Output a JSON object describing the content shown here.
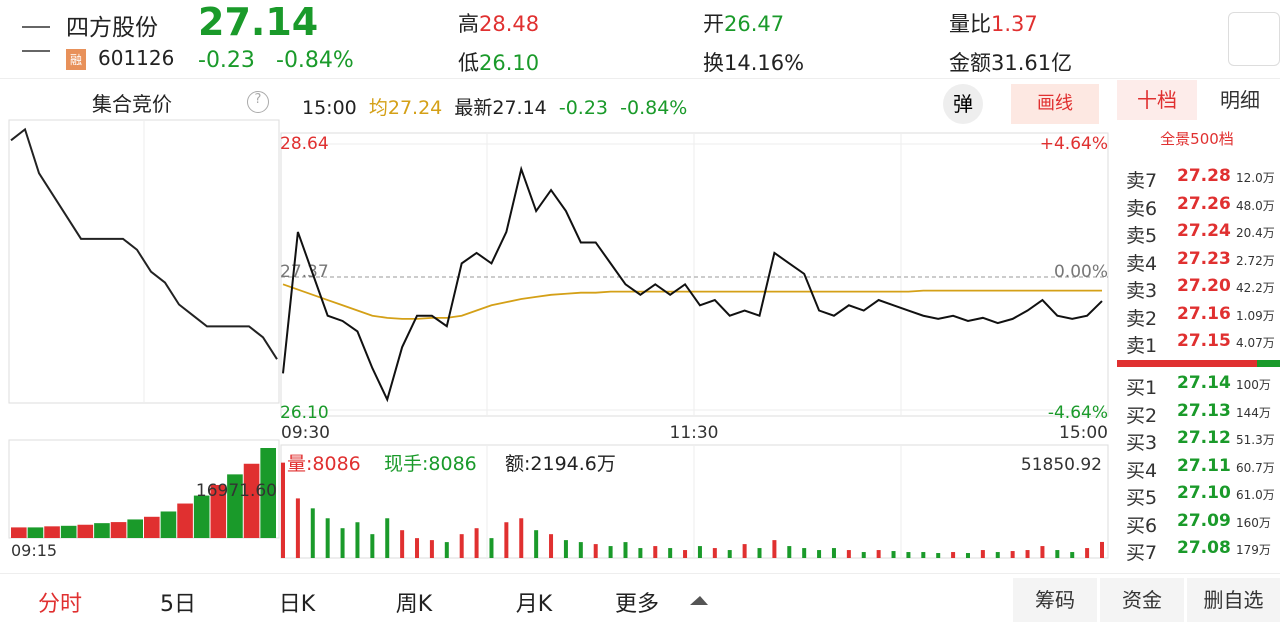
{
  "header": {
    "name": "四方股份",
    "price": "27.14",
    "tag": "融",
    "code": "601126",
    "change": "-0.23",
    "pct": "-0.84%",
    "high_label": "高",
    "high": "28.48",
    "low_label": "低",
    "low": "26.10",
    "open_label": "开",
    "open": "26.47",
    "turn_label": "换",
    "turn": "14.16%",
    "vr_label": "量比",
    "vr": "1.37",
    "amt_label": "金额",
    "amt": "31.61亿"
  },
  "chart": {
    "auction_title": "集合竞价",
    "help": "?",
    "time": "15:00",
    "avg": "均27.24",
    "latest": "最新27.14",
    "change": "-0.23",
    "pct": "-0.84%",
    "btn_pop": "弹",
    "btn_draw": "画线",
    "ylim": [
      26.1,
      28.64
    ],
    "yticks": [
      {
        "value": 28.64,
        "label": "28.64"
      },
      {
        "value": 27.37,
        "label": "27.37"
      },
      {
        "value": 26.1,
        "label": "26.10"
      }
    ],
    "pct_ticks": [
      "+4.64%",
      "0.00%",
      "-4.64%"
    ],
    "xticks": [
      "09:30",
      "11:30",
      "15:00"
    ],
    "price": [
      26.45,
      27.8,
      27.4,
      27.0,
      26.95,
      26.85,
      26.5,
      26.2,
      26.7,
      27.0,
      27.0,
      26.9,
      27.5,
      27.6,
      27.5,
      27.8,
      28.4,
      28.0,
      28.2,
      28.0,
      27.7,
      27.7,
      27.5,
      27.3,
      27.2,
      27.3,
      27.2,
      27.3,
      27.1,
      27.15,
      27.0,
      27.05,
      27.0,
      27.6,
      27.5,
      27.4,
      27.05,
      27.0,
      27.1,
      27.05,
      27.15,
      27.1,
      27.05,
      27.0,
      26.97,
      27.0,
      26.95,
      26.98,
      26.93,
      26.97,
      27.05,
      27.15,
      27.0,
      26.97,
      27.0,
      27.14
    ],
    "avg_line": [
      27.3,
      27.25,
      27.2,
      27.15,
      27.1,
      27.05,
      27.0,
      26.98,
      26.97,
      26.97,
      26.98,
      26.98,
      27.0,
      27.05,
      27.1,
      27.13,
      27.16,
      27.18,
      27.2,
      27.21,
      27.22,
      27.22,
      27.23,
      27.23,
      27.23,
      27.23,
      27.23,
      27.23,
      27.23,
      27.23,
      27.23,
      27.23,
      27.23,
      27.23,
      27.23,
      27.23,
      27.23,
      27.23,
      27.23,
      27.23,
      27.23,
      27.23,
      27.23,
      27.24,
      27.24,
      27.24,
      27.24,
      27.24,
      27.24,
      27.24,
      27.24,
      27.24,
      27.24,
      27.24,
      27.24,
      27.24
    ],
    "vol_label": "量:8086",
    "hand_label": "现手:8086",
    "amt_label": "额:2194.6万",
    "vol_max": {
      "value": 51850.92,
      "label": "51850.92"
    },
    "volume": [
      48000,
      30000,
      25000,
      20000,
      15000,
      18000,
      12000,
      20000,
      14000,
      10000,
      9000,
      8000,
      12000,
      15000,
      10000,
      18000,
      20000,
      14000,
      12000,
      9000,
      8000,
      7000,
      6000,
      8000,
      5000,
      6000,
      5000,
      4000,
      6000,
      5000,
      4000,
      7000,
      5000,
      9000,
      6000,
      5000,
      4000,
      5000,
      4000,
      3000,
      4000,
      3500,
      3000,
      3000,
      2500,
      3000,
      2500,
      4000,
      3000,
      3500,
      4000,
      6000,
      4000,
      3000,
      5000,
      8086
    ],
    "auction": [
      28.5,
      28.6,
      28.2,
      28.0,
      27.8,
      27.6,
      27.6,
      27.6,
      27.6,
      27.5,
      27.3,
      27.2,
      27.0,
      26.9,
      26.8,
      26.8,
      26.8,
      26.8,
      26.7,
      26.5
    ],
    "auction_vol_max": {
      "value": 16971.6,
      "label": "16971.60"
    },
    "auction_time": "09:15",
    "auction_vol": [
      2000,
      2000,
      2200,
      2300,
      2500,
      2800,
      3000,
      3500,
      4000,
      5000,
      6500,
      8000,
      10000,
      12000,
      14000,
      16971.6
    ]
  },
  "order_book": {
    "tab1": "十档",
    "tab2": "明细",
    "depth": "全景500档",
    "sells": [
      [
        "卖7",
        "27.28",
        "12.0万"
      ],
      [
        "卖6",
        "27.26",
        "48.0万"
      ],
      [
        "卖5",
        "27.24",
        "20.4万"
      ],
      [
        "卖4",
        "27.23",
        "2.72万"
      ],
      [
        "卖3",
        "27.20",
        "42.2万"
      ],
      [
        "卖2",
        "27.16",
        "1.09万"
      ],
      [
        "卖1",
        "27.15",
        "4.07万"
      ]
    ],
    "buys": [
      [
        "买1",
        "27.14",
        "100万"
      ],
      [
        "买2",
        "27.13",
        "144万"
      ],
      [
        "买3",
        "27.12",
        "51.3万"
      ],
      [
        "买4",
        "27.11",
        "60.7万"
      ],
      [
        "买5",
        "27.10",
        "61.0万"
      ],
      [
        "买6",
        "27.09",
        "160万"
      ],
      [
        "买7",
        "27.08",
        "179万"
      ]
    ]
  },
  "tabs": [
    "分时",
    "5日",
    "日K",
    "周K",
    "月K",
    "更多"
  ],
  "actions": [
    "筹码",
    "资金",
    "删自选"
  ]
}
